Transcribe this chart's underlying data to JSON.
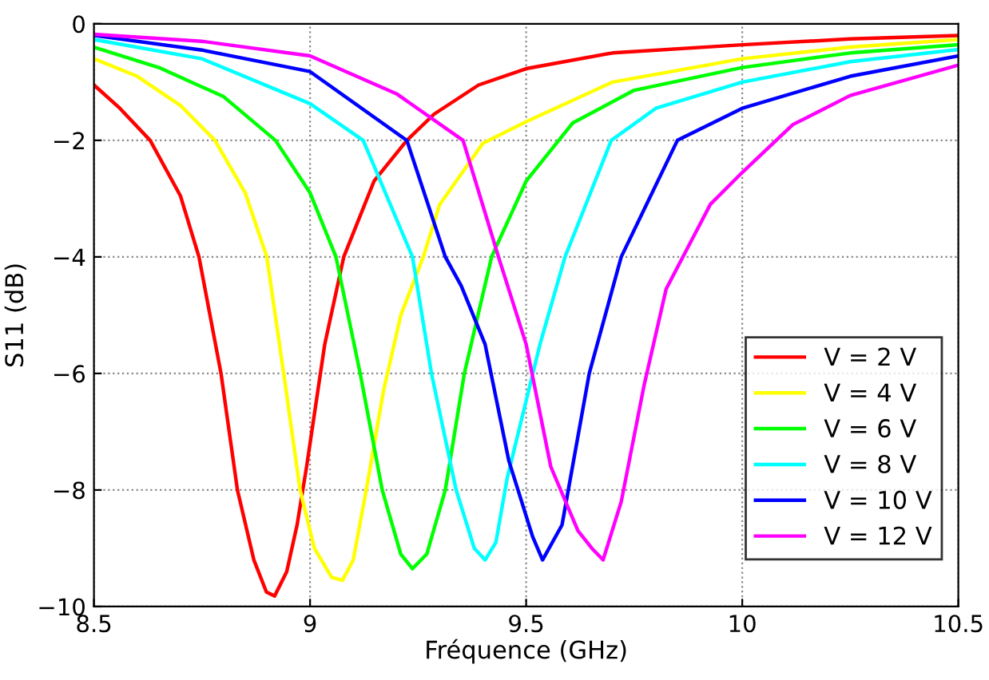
{
  "chart_data": {
    "type": "line",
    "xlabel": "Fréquence (GHz)",
    "ylabel": "S11 (dB)",
    "xlim": [
      8.5,
      10.5
    ],
    "xticks": [
      8.5,
      9,
      9.5,
      10,
      10.5
    ],
    "ylim": [
      -10,
      0
    ],
    "yticks": [
      -10,
      -8,
      -6,
      -4,
      -2,
      0
    ],
    "grid": true,
    "legend": "bottom right",
    "marker": "none",
    "line_style": "solid",
    "series": [
      {
        "name": "V = 2 V",
        "color": "#ff0000",
        "x": [
          8.5,
          8.56,
          8.63,
          8.7,
          8.743,
          8.794,
          8.832,
          8.87,
          8.899,
          8.918,
          8.946,
          8.97,
          8.992,
          9.034,
          9.078,
          9.148,
          9.224,
          9.287,
          9.39,
          9.5,
          9.7,
          10.0,
          10.25,
          10.5
        ],
        "values": [
          -1.05,
          -1.45,
          -2.0,
          -2.95,
          -4.0,
          -6.0,
          -8.0,
          -9.2,
          -9.75,
          -9.82,
          -9.4,
          -8.6,
          -7.6,
          -5.5,
          -4.0,
          -2.7,
          -2.0,
          -1.55,
          -1.05,
          -0.77,
          -0.5,
          -0.36,
          -0.26,
          -0.2
        ]
      },
      {
        "name": "V = 4 V",
        "color": "#ffff00",
        "x": [
          8.5,
          8.6,
          8.7,
          8.78,
          8.85,
          8.9,
          8.939,
          8.977,
          9.01,
          9.05,
          9.075,
          9.1,
          9.13,
          9.17,
          9.21,
          9.262,
          9.3,
          9.4,
          9.5,
          9.7,
          10.0,
          10.25,
          10.5
        ],
        "values": [
          -0.6,
          -0.9,
          -1.4,
          -2.0,
          -2.9,
          -4.0,
          -6.0,
          -8.0,
          -9.0,
          -9.5,
          -9.55,
          -9.2,
          -8.0,
          -6.3,
          -5.0,
          -4.0,
          -3.1,
          -2.05,
          -1.68,
          -1.0,
          -0.6,
          -0.4,
          -0.27
        ]
      },
      {
        "name": "V = 6 V",
        "color": "#00ff00",
        "x": [
          8.5,
          8.65,
          8.8,
          8.92,
          9.0,
          9.06,
          9.116,
          9.167,
          9.21,
          9.237,
          9.27,
          9.313,
          9.357,
          9.42,
          9.5,
          9.608,
          9.75,
          10.0,
          10.25,
          10.5
        ],
        "values": [
          -0.4,
          -0.75,
          -1.25,
          -2.0,
          -2.9,
          -4.0,
          -6.0,
          -8.0,
          -9.1,
          -9.35,
          -9.1,
          -8.0,
          -6.0,
          -4.0,
          -2.7,
          -1.7,
          -1.14,
          -0.75,
          -0.5,
          -0.36
        ]
      },
      {
        "name": "V = 8 V",
        "color": "#00ffff",
        "x": [
          8.5,
          8.75,
          9.0,
          9.123,
          9.237,
          9.281,
          9.338,
          9.38,
          9.405,
          9.43,
          9.456,
          9.532,
          9.59,
          9.697,
          9.8,
          10.0,
          10.25,
          10.5
        ],
        "values": [
          -0.27,
          -0.6,
          -1.37,
          -2.0,
          -4.0,
          -6.0,
          -8.0,
          -9.0,
          -9.2,
          -8.9,
          -7.8,
          -5.5,
          -4.0,
          -2.0,
          -1.45,
          -1.0,
          -0.65,
          -0.44
        ]
      },
      {
        "name": "V = 10 V",
        "color": "#0000ff",
        "x": [
          8.5,
          8.75,
          9.0,
          9.224,
          9.313,
          9.35,
          9.405,
          9.46,
          9.515,
          9.538,
          9.583,
          9.646,
          9.72,
          9.85,
          10.0,
          10.25,
          10.5
        ],
        "values": [
          -0.2,
          -0.45,
          -0.82,
          -2.0,
          -4.0,
          -4.5,
          -5.5,
          -7.5,
          -8.8,
          -9.2,
          -8.6,
          -6.0,
          -4.0,
          -2.0,
          -1.45,
          -0.9,
          -0.55
        ]
      },
      {
        "name": "V = 12 V",
        "color": "#ff00ff",
        "x": [
          8.5,
          8.75,
          9.0,
          9.2,
          9.354,
          9.436,
          9.5,
          9.557,
          9.62,
          9.652,
          9.678,
          9.72,
          9.773,
          9.824,
          9.926,
          10.0,
          10.117,
          10.25,
          10.5
        ],
        "values": [
          -0.18,
          -0.3,
          -0.55,
          -1.2,
          -2.0,
          -4.0,
          -5.5,
          -7.6,
          -8.7,
          -9.0,
          -9.2,
          -8.2,
          -6.2,
          -4.55,
          -3.1,
          -2.55,
          -1.73,
          -1.23,
          -0.71
        ]
      }
    ]
  }
}
